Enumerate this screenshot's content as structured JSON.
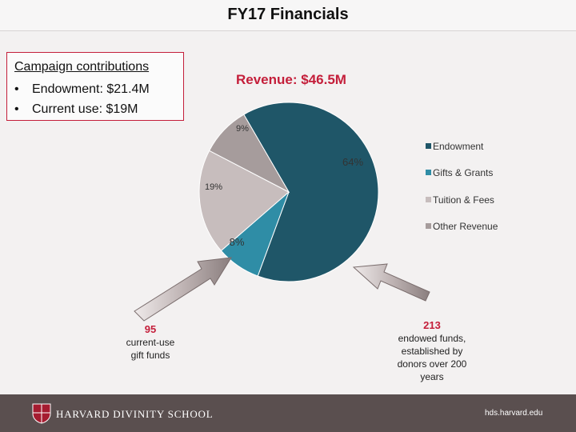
{
  "header": {
    "title": "FY17 Financials"
  },
  "campaign": {
    "heading": "Campaign contributions",
    "items": [
      "Endowment: $21.4M",
      "Current use: $19M"
    ]
  },
  "revenue_label": "Revenue: $46.5M",
  "chart_data": {
    "type": "pie",
    "categories": [
      "Endowment",
      "Gifts & Grants",
      "Tuition & Fees",
      "Other Revenue"
    ],
    "values": [
      64,
      8,
      19,
      9
    ],
    "data_labels": [
      "64%",
      "8%",
      "19%",
      "9%"
    ],
    "colors": [
      "#1f5668",
      "#2f8da6",
      "#c7bdbd",
      "#a69c9c"
    ],
    "legend_position": "right"
  },
  "callouts": {
    "left": {
      "number": "95",
      "line1": "current-use",
      "line2": "gift funds"
    },
    "right": {
      "number": "213",
      "line1": "endowed funds,",
      "line2": "established by",
      "line3": "donors over 200",
      "line4": "years"
    }
  },
  "footer": {
    "school": "HARVARD DIVINITY SCHOOL",
    "url": "hds.harvard.edu"
  }
}
